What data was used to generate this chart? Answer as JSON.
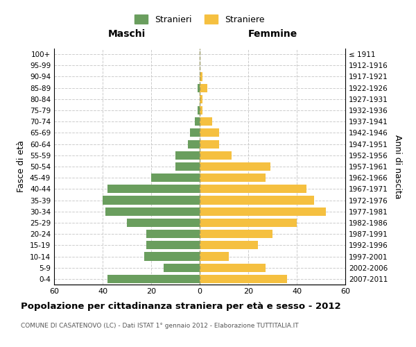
{
  "age_groups": [
    "0-4",
    "5-9",
    "10-14",
    "15-19",
    "20-24",
    "25-29",
    "30-34",
    "35-39",
    "40-44",
    "45-49",
    "50-54",
    "55-59",
    "60-64",
    "65-69",
    "70-74",
    "75-79",
    "80-84",
    "85-89",
    "90-94",
    "95-99",
    "100+"
  ],
  "birth_years": [
    "2007-2011",
    "2002-2006",
    "1997-2001",
    "1992-1996",
    "1987-1991",
    "1982-1986",
    "1977-1981",
    "1972-1976",
    "1967-1971",
    "1962-1966",
    "1957-1961",
    "1952-1956",
    "1947-1951",
    "1942-1946",
    "1937-1941",
    "1932-1936",
    "1927-1931",
    "1922-1926",
    "1917-1921",
    "1912-1916",
    "≤ 1911"
  ],
  "maschi": [
    38,
    15,
    23,
    22,
    22,
    30,
    39,
    40,
    38,
    20,
    10,
    10,
    5,
    4,
    2,
    1,
    0,
    1,
    0,
    0,
    0
  ],
  "femmine": [
    36,
    27,
    12,
    24,
    30,
    40,
    52,
    47,
    44,
    27,
    29,
    13,
    8,
    8,
    5,
    1,
    1,
    3,
    1,
    0,
    0
  ],
  "maschi_color": "#6a9e5e",
  "femmine_color": "#f5c040",
  "background_color": "#ffffff",
  "grid_color": "#cccccc",
  "xlim": 60,
  "title": "Popolazione per cittadinanza straniera per età e sesso - 2012",
  "subtitle": "COMUNE DI CASATENOVO (LC) - Dati ISTAT 1° gennaio 2012 - Elaborazione TUTTITALIA.IT",
  "ylabel_left": "Fasce di età",
  "ylabel_right": "Anni di nascita",
  "xlabel_left": "Maschi",
  "xlabel_right": "Femmine",
  "legend_stranieri": "Stranieri",
  "legend_straniere": "Straniere",
  "center_line_color": "#999966"
}
